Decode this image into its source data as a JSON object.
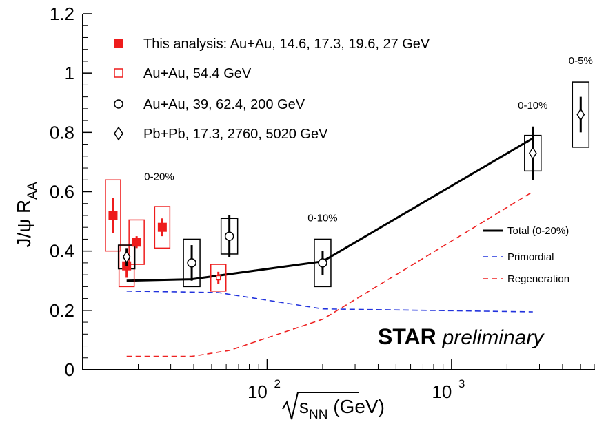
{
  "chart_data": {
    "type": "scatter",
    "xscale": "log",
    "xlim": [
      10,
      6000
    ],
    "ylim": [
      0,
      1.2
    ],
    "xlabel": {
      "main": "s",
      "sub": "NN",
      "unit": " (GeV)"
    },
    "ylabel": {
      "main": "J/ψ R",
      "sub": "AA"
    },
    "xticks": [
      {
        "value": 100,
        "base": "10",
        "exp": "2"
      },
      {
        "value": 1000,
        "base": "10",
        "exp": "3"
      }
    ],
    "yticks": [
      {
        "value": 0,
        "label": "0"
      },
      {
        "value": 0.2,
        "label": "0.2"
      },
      {
        "value": 0.4,
        "label": "0.4"
      },
      {
        "value": 0.6,
        "label": "0.6"
      },
      {
        "value": 0.8,
        "label": "0.8"
      },
      {
        "value": 1.0,
        "label": "1"
      },
      {
        "value": 1.2,
        "label": "1.2"
      }
    ],
    "series": [
      {
        "name": "This analysis: Au+Au, 14.6, 17.3, 19.6, 27 GeV",
        "marker": "filled-square",
        "color": "#ee1c1c",
        "points": [
          {
            "x": 14.6,
            "y": 0.52,
            "stat": 0.06,
            "sys": 0.12
          },
          {
            "x": 17.3,
            "y": 0.35,
            "stat": 0.04,
            "sys": 0.07
          },
          {
            "x": 19.6,
            "y": 0.43,
            "stat": 0.02,
            "sys": 0.075
          },
          {
            "x": 27,
            "y": 0.48,
            "stat": 0.03,
            "sys": 0.07
          }
        ]
      },
      {
        "name": "Au+Au, 54.4 GeV",
        "marker": "open-square",
        "color": "#ee1c1c",
        "points": [
          {
            "x": 54.4,
            "y": 0.31,
            "stat": 0.02,
            "sys": 0.045
          }
        ]
      },
      {
        "name": "Au+Au, 39, 62.4, 200 GeV",
        "marker": "open-circle",
        "color": "#000000",
        "points": [
          {
            "x": 39,
            "y": 0.36,
            "stat": 0.06,
            "sys": 0.08
          },
          {
            "x": 62.4,
            "y": 0.45,
            "stat": 0.07,
            "sys": 0.06
          },
          {
            "x": 200,
            "y": 0.36,
            "stat": 0.04,
            "sys": 0.08
          }
        ]
      },
      {
        "name": "Pb+Pb, 17.3, 2760, 5020 GeV",
        "marker": "open-diamond",
        "color": "#000000",
        "points": [
          {
            "x": 17.3,
            "y": 0.38,
            "stat": 0.03,
            "sys": 0.04
          },
          {
            "x": 2760,
            "y": 0.73,
            "stat": 0.09,
            "sys": 0.06
          },
          {
            "x": 5020,
            "y": 0.86,
            "stat": 0.06,
            "sys": 0.11
          }
        ]
      }
    ],
    "models": [
      {
        "name": "Total (0-20%)",
        "style": "solid",
        "color": "#000000",
        "points": [
          [
            17.3,
            0.3
          ],
          [
            39,
            0.305
          ],
          [
            200,
            0.365
          ],
          [
            2760,
            0.78
          ]
        ]
      },
      {
        "name": "Primordial",
        "style": "dashed",
        "color": "#2233dd",
        "points": [
          [
            17.3,
            0.265
          ],
          [
            54.4,
            0.26
          ],
          [
            200,
            0.205
          ],
          [
            2760,
            0.195
          ]
        ]
      },
      {
        "name": "Regeneration",
        "style": "dashed",
        "color": "#ee2222",
        "points": [
          [
            17.3,
            0.045
          ],
          [
            39,
            0.045
          ],
          [
            62.4,
            0.065
          ],
          [
            200,
            0.17
          ],
          [
            2760,
            0.6
          ]
        ]
      }
    ],
    "annotations": [
      {
        "text": "0-20%",
        "x": 26,
        "y": 0.64
      },
      {
        "text": "0-10%",
        "x": 200,
        "y": 0.5
      },
      {
        "text": "0-10%",
        "x": 2760,
        "y": 0.88
      },
      {
        "text": "0-5%",
        "x": 5020,
        "y": 1.03
      }
    ],
    "legend_position": "top-left",
    "model_legend_position": "right",
    "watermark": {
      "bold": "STAR",
      "italic": "preliminary"
    }
  }
}
